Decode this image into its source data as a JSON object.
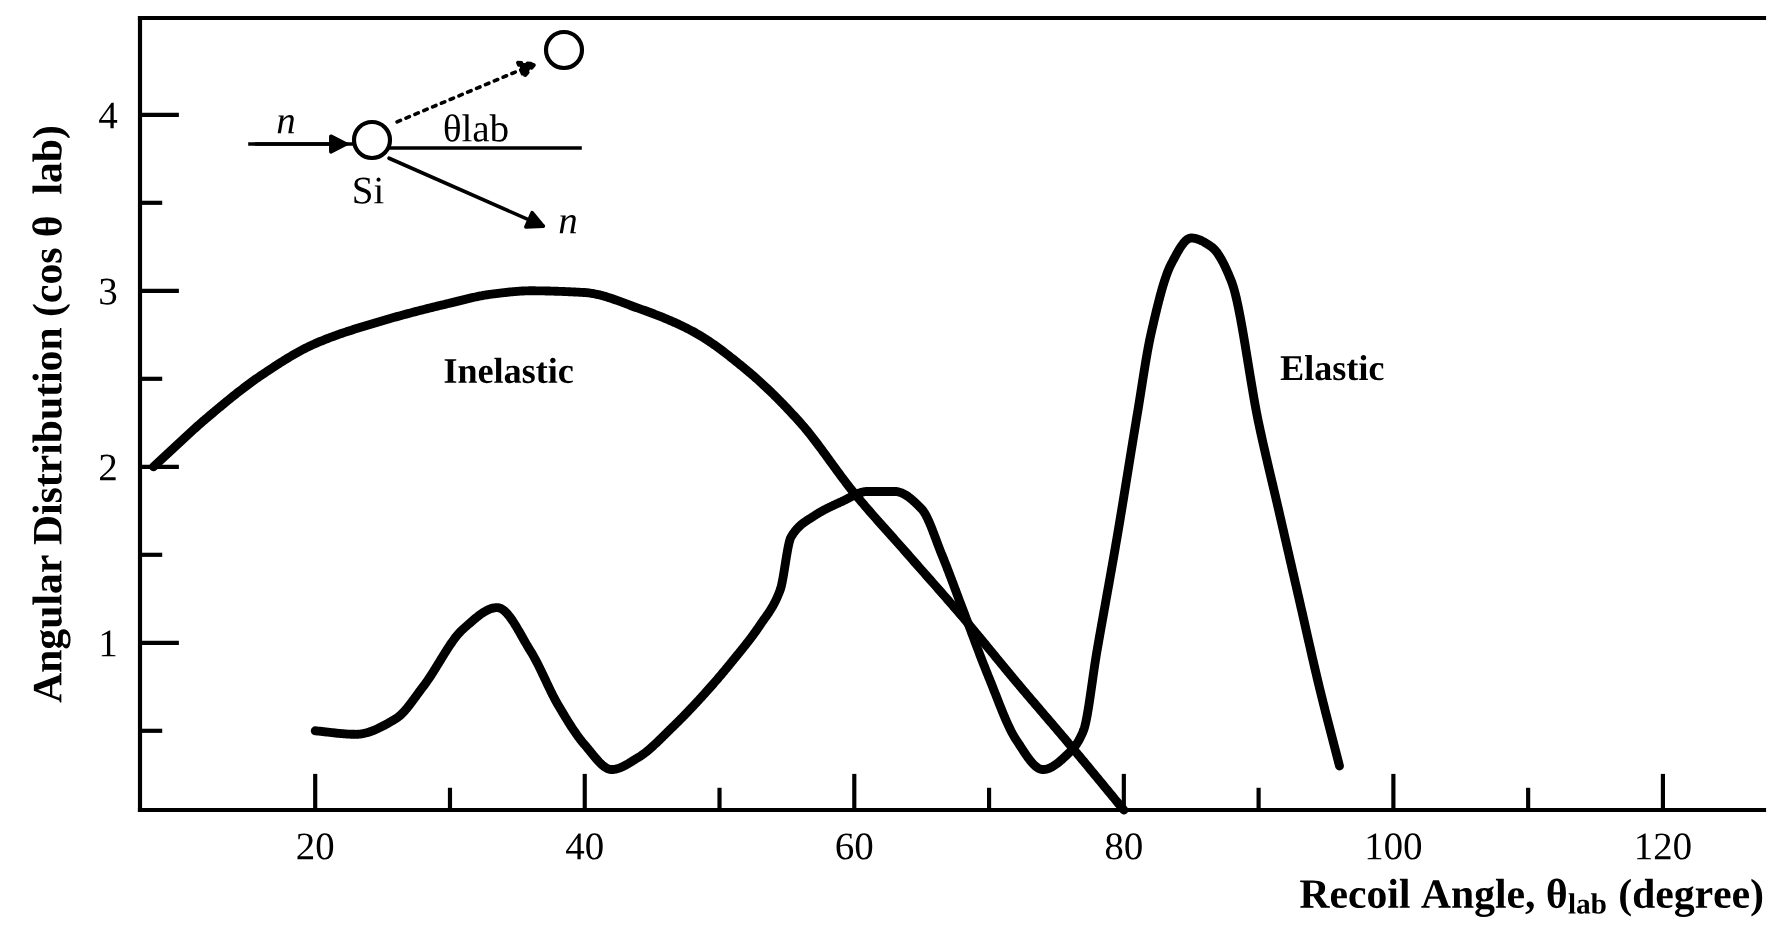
{
  "chart_data": {
    "type": "line",
    "xlabel": "Recoil Angle, θ$_{lab}$ (degree)",
    "ylabel": "Angular Distribution (cos θ  lab)",
    "annotations": [
      "n",
      "θlab",
      "Si",
      "n"
    ],
    "series": [
      {
        "name": "Inelastic",
        "color": "#000000",
        "x": [
          8,
          12,
          16,
          20,
          25,
          30,
          33,
          36,
          40,
          44,
          48,
          52,
          56,
          60,
          64,
          68,
          72,
          76,
          80
        ],
        "values": [
          2.0,
          2.28,
          2.52,
          2.7,
          2.83,
          2.93,
          2.98,
          3.0,
          2.99,
          2.9,
          2.77,
          2.55,
          2.25,
          1.85,
          1.5,
          1.15,
          0.78,
          0.42,
          0.05
        ]
      },
      {
        "name": "Elastic",
        "color": "#000000",
        "x": [
          20,
          23,
          26,
          28,
          31,
          33.5,
          36,
          38,
          40,
          42,
          44,
          46.5,
          49,
          51,
          53,
          54.5,
          55.3,
          57,
          59,
          61,
          63,
          65,
          66.5,
          68,
          70,
          72,
          74,
          76,
          77,
          78,
          79.5,
          81,
          82,
          83.5,
          85,
          86.5,
          88,
          90,
          91.5,
          93,
          94.5,
          96
        ],
        "values": [
          0.5,
          0.48,
          0.57,
          0.75,
          1.08,
          1.2,
          0.95,
          0.65,
          0.42,
          0.28,
          0.35,
          0.52,
          0.72,
          0.9,
          1.1,
          1.3,
          1.6,
          1.72,
          1.8,
          1.86,
          1.86,
          1.76,
          1.5,
          1.2,
          0.8,
          0.45,
          0.28,
          0.38,
          0.5,
          0.95,
          1.6,
          2.3,
          2.75,
          3.15,
          3.3,
          3.25,
          3.05,
          2.25,
          1.75,
          1.25,
          0.75,
          0.3
        ]
      }
    ],
    "xlim": [
      7,
      127.5
    ],
    "ylim": [
      0.05,
      4.55
    ],
    "xticks": [
      20,
      {
        "value": 30,
        "label": null
      },
      40,
      {
        "value": 50,
        "label": null
      },
      60,
      {
        "value": 70,
        "label": null
      },
      80,
      {
        "value": 90,
        "label": null
      },
      100,
      {
        "value": 110,
        "label": null
      },
      120
    ],
    "yticks": [
      {
        "value": 0.5,
        "label": null
      },
      1,
      {
        "value": 1.5,
        "label": null
      },
      2,
      {
        "value": 2.5,
        "label": null
      },
      3,
      {
        "value": 3.5,
        "label": null
      },
      4
    ],
    "grid": false,
    "legend": false,
    "marker": "none",
    "line_style": "solid"
  }
}
